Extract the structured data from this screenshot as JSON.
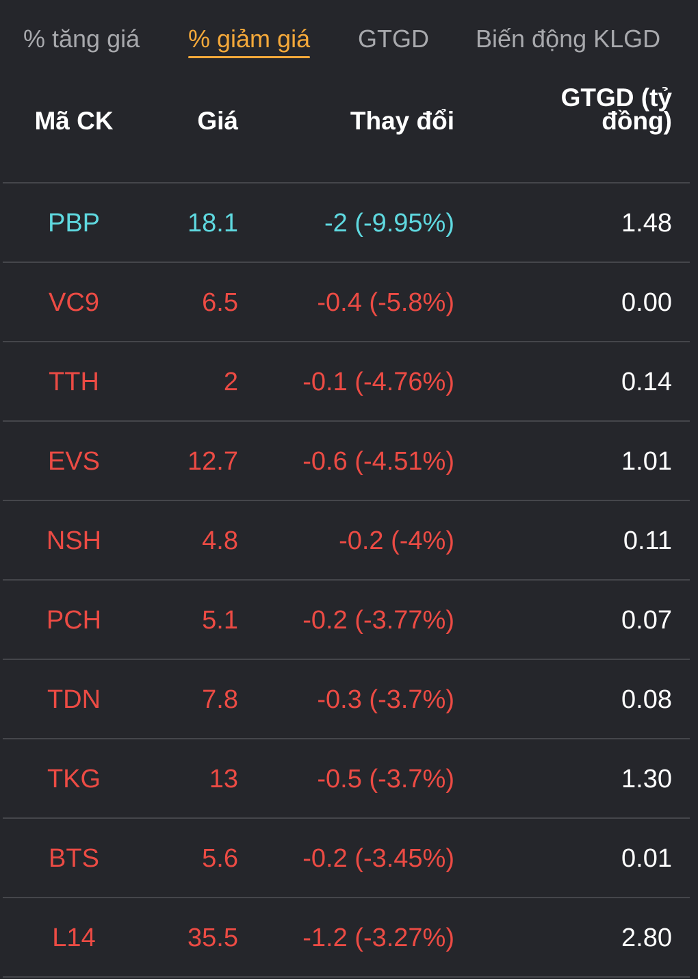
{
  "tabs": [
    {
      "label": "% tăng giá",
      "active": false
    },
    {
      "label": "% giảm giá",
      "active": true
    },
    {
      "label": "GTGD",
      "active": false
    },
    {
      "label": "Biến động KLGD",
      "active": false
    }
  ],
  "table": {
    "headers": {
      "code": "Mã CK",
      "price": "Giá",
      "change": "Thay đổi",
      "value_line1": "GTGD (tỷ",
      "value_line2": "đồng)"
    },
    "colors": {
      "floor": "#5fd9e0",
      "down": "#ec4b44",
      "neutral": "#ffffff",
      "active_tab": "#f5a93a"
    },
    "rows": [
      {
        "code": "PBP",
        "price": "18.1",
        "change": "-2 (-9.95%)",
        "value": "1.48",
        "status": "floor"
      },
      {
        "code": "VC9",
        "price": "6.5",
        "change": "-0.4 (-5.8%)",
        "value": "0.00",
        "status": "down"
      },
      {
        "code": "TTH",
        "price": "2",
        "change": "-0.1 (-4.76%)",
        "value": "0.14",
        "status": "down"
      },
      {
        "code": "EVS",
        "price": "12.7",
        "change": "-0.6 (-4.51%)",
        "value": "1.01",
        "status": "down"
      },
      {
        "code": "NSH",
        "price": "4.8",
        "change": "-0.2 (-4%)",
        "value": "0.11",
        "status": "down"
      },
      {
        "code": "PCH",
        "price": "5.1",
        "change": "-0.2 (-3.77%)",
        "value": "0.07",
        "status": "down"
      },
      {
        "code": "TDN",
        "price": "7.8",
        "change": "-0.3 (-3.7%)",
        "value": "0.08",
        "status": "down"
      },
      {
        "code": "TKG",
        "price": "13",
        "change": "-0.5 (-3.7%)",
        "value": "1.30",
        "status": "down"
      },
      {
        "code": "BTS",
        "price": "5.6",
        "change": "-0.2 (-3.45%)",
        "value": "0.01",
        "status": "down"
      },
      {
        "code": "L14",
        "price": "35.5",
        "change": "-1.2 (-3.27%)",
        "value": "2.80",
        "status": "down"
      }
    ]
  }
}
